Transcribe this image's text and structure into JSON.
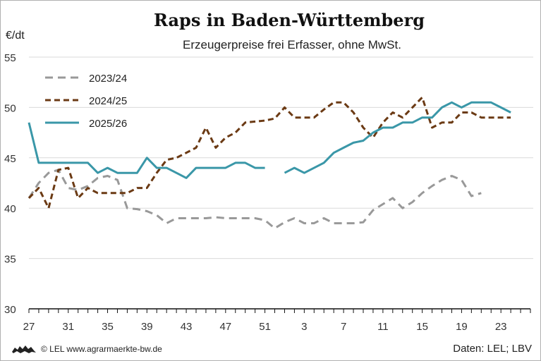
{
  "title": "Raps in Baden-Württemberg",
  "subtitle": "Erzeugerpreise frei Erfasser, ohne MwSt.",
  "footer": {
    "copyright": "© LEL www.agrarmaerkte-bw.de",
    "source": "Daten: LEL; LBV",
    "logo_icon": "lion-crest-icon"
  },
  "chart_data": {
    "type": "line",
    "title": "Raps in Baden-Württemberg",
    "subtitle": "Erzeugerpreise frei Erfasser, ohne MwSt.",
    "ylabel": "€/dt",
    "xlabel": "",
    "ylim": [
      30,
      55
    ],
    "yticks": [
      30,
      35,
      40,
      45,
      50,
      55
    ],
    "x_categories": [
      "27",
      "28",
      "29",
      "30",
      "31",
      "32",
      "33",
      "34",
      "35",
      "36",
      "37",
      "38",
      "39",
      "40",
      "41",
      "42",
      "43",
      "44",
      "45",
      "46",
      "47",
      "48",
      "49",
      "50",
      "51",
      "52",
      "1",
      "2",
      "3",
      "4",
      "5",
      "6",
      "7",
      "8",
      "9",
      "10",
      "11",
      "12",
      "13",
      "14",
      "15",
      "16",
      "17",
      "18",
      "19",
      "20",
      "21",
      "22",
      "23",
      "24",
      "25",
      "26"
    ],
    "x_tick_labels": [
      "27",
      "31",
      "35",
      "39",
      "43",
      "47",
      "51",
      "3",
      "7",
      "11",
      "15",
      "19",
      "23"
    ],
    "grid": "horizontal",
    "legend_position": "top-left",
    "series": [
      {
        "name": "2023/24",
        "color": "#999999",
        "style": "dashed",
        "values": [
          41,
          42.5,
          43.5,
          43.8,
          42,
          41.8,
          42.2,
          43,
          43.2,
          42.8,
          40,
          39.9,
          39.7,
          39.3,
          38.5,
          39,
          39,
          39,
          39,
          39.1,
          39,
          39,
          39,
          39,
          38.8,
          38,
          38.6,
          39,
          38.5,
          38.5,
          39,
          38.5,
          38.5,
          38.5,
          38.6,
          39.8,
          40.4,
          41,
          40,
          40.6,
          41.5,
          42.2,
          42.8,
          43.2,
          42.8,
          41.2,
          41.5
        ]
      },
      {
        "name": "2024/25",
        "color": "#6b3a14",
        "style": "dashed",
        "values": [
          41,
          42,
          40,
          43.8,
          44,
          41,
          42,
          41.5,
          41.5,
          41.5,
          41.5,
          42,
          42,
          43.5,
          44.8,
          45,
          45.5,
          46,
          48,
          46,
          47,
          47.5,
          48.5,
          48.6,
          48.7,
          48.9,
          50,
          49,
          49,
          49,
          49.8,
          50.5,
          50.5,
          49.5,
          48,
          47,
          48.5,
          49.5,
          49,
          50,
          51,
          48,
          48.5,
          48.5,
          49.5,
          49.5,
          49,
          49,
          49,
          49
        ]
      },
      {
        "name": "2025/26",
        "color": "#3a97a8",
        "style": "solid",
        "values": [
          48.5,
          44.5,
          44.5,
          44.5,
          44.5,
          44.5,
          44.5,
          43.5,
          44,
          43.5,
          43.5,
          43.5,
          45,
          44,
          44,
          43.5,
          43,
          44,
          44,
          44,
          44,
          44.5,
          44.5,
          44,
          44,
          null,
          43.5,
          44,
          43.5,
          44,
          44.5,
          45.5,
          46,
          46.5,
          46.7,
          47.5,
          48,
          48,
          48.5,
          48.5,
          49,
          49,
          50,
          50.5,
          50,
          50.5,
          50.5,
          50.5,
          50,
          49.5
        ]
      }
    ]
  }
}
